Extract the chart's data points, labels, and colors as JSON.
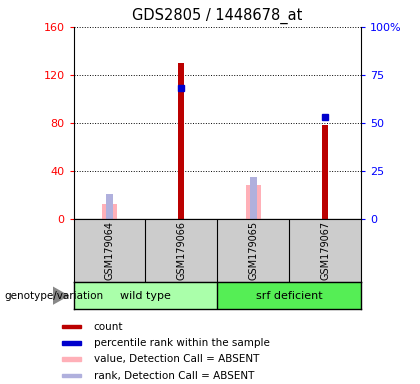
{
  "title": "GDS2805 / 1448678_at",
  "samples": [
    "GSM179064",
    "GSM179066",
    "GSM179065",
    "GSM179067"
  ],
  "red_count": [
    0,
    130,
    0,
    78
  ],
  "blue_rank_pct": [
    null,
    68,
    null,
    53
  ],
  "pink_value": [
    12,
    0,
    28,
    0
  ],
  "light_blue_rank_pct": [
    13,
    0,
    22,
    0
  ],
  "ylim_left": [
    0,
    160
  ],
  "ylim_right": [
    0,
    100
  ],
  "yticks_left": [
    0,
    40,
    80,
    120,
    160
  ],
  "yticks_right": [
    0,
    25,
    50,
    75,
    100
  ],
  "ytick_labels_right": [
    "0",
    "25",
    "50",
    "75",
    "100%"
  ],
  "bar_color_red": "#bb0000",
  "bar_color_blue": "#0000cc",
  "bar_color_pink": "#ffb0b8",
  "bar_color_light_blue": "#b0b0dd",
  "legend_items": [
    {
      "color": "#bb0000",
      "label": "count"
    },
    {
      "color": "#0000cc",
      "label": "percentile rank within the sample"
    },
    {
      "color": "#ffb0b8",
      "label": "value, Detection Call = ABSENT"
    },
    {
      "color": "#b0b0dd",
      "label": "rank, Detection Call = ABSENT"
    }
  ],
  "xlabel_genotype": "genotype/variation",
  "wild_type_color": "#aaffaa",
  "srf_deficient_color": "#55ee55"
}
